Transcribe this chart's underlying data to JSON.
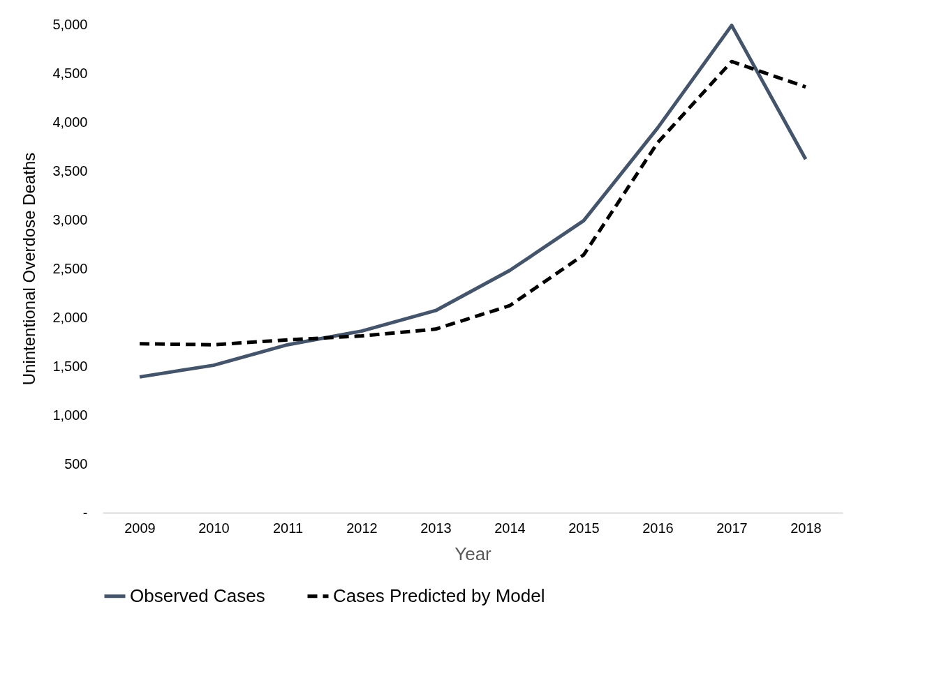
{
  "chart_data": {
    "type": "line",
    "xlabel": "Year",
    "ylabel": "Unintentional Overdose Deaths",
    "categories": [
      "2009",
      "2010",
      "2011",
      "2012",
      "2013",
      "2014",
      "2015",
      "2016",
      "2017",
      "2018"
    ],
    "series": [
      {
        "name": "Observed Cases",
        "color": "#44546a",
        "line_style": "solid",
        "values": [
          1390,
          1510,
          1720,
          1860,
          2070,
          2480,
          2990,
          3940,
          4990,
          3620
        ]
      },
      {
        "name": "Cases Predicted by Model",
        "color": "#000000",
        "line_style": "dashed",
        "values": [
          1730,
          1720,
          1770,
          1810,
          1880,
          2120,
          2640,
          3790,
          4620,
          4360
        ]
      }
    ],
    "ylim": [
      0,
      5000
    ],
    "yticks": [
      {
        "value": 0,
        "label": "-"
      },
      500,
      {
        "value": 1000,
        "label": "1,000"
      },
      {
        "value": 1500,
        "label": "1,500"
      },
      {
        "value": 2000,
        "label": "2,000"
      },
      {
        "value": 2500,
        "label": "2,500"
      },
      {
        "value": 3000,
        "label": "3,000"
      },
      {
        "value": 3500,
        "label": "3,500"
      },
      {
        "value": 4000,
        "label": "4,000"
      },
      {
        "value": 4500,
        "label": "4,500"
      },
      {
        "value": 5000,
        "label": "5,000"
      }
    ],
    "grid": false,
    "legend": "bottom",
    "marker": "none"
  }
}
